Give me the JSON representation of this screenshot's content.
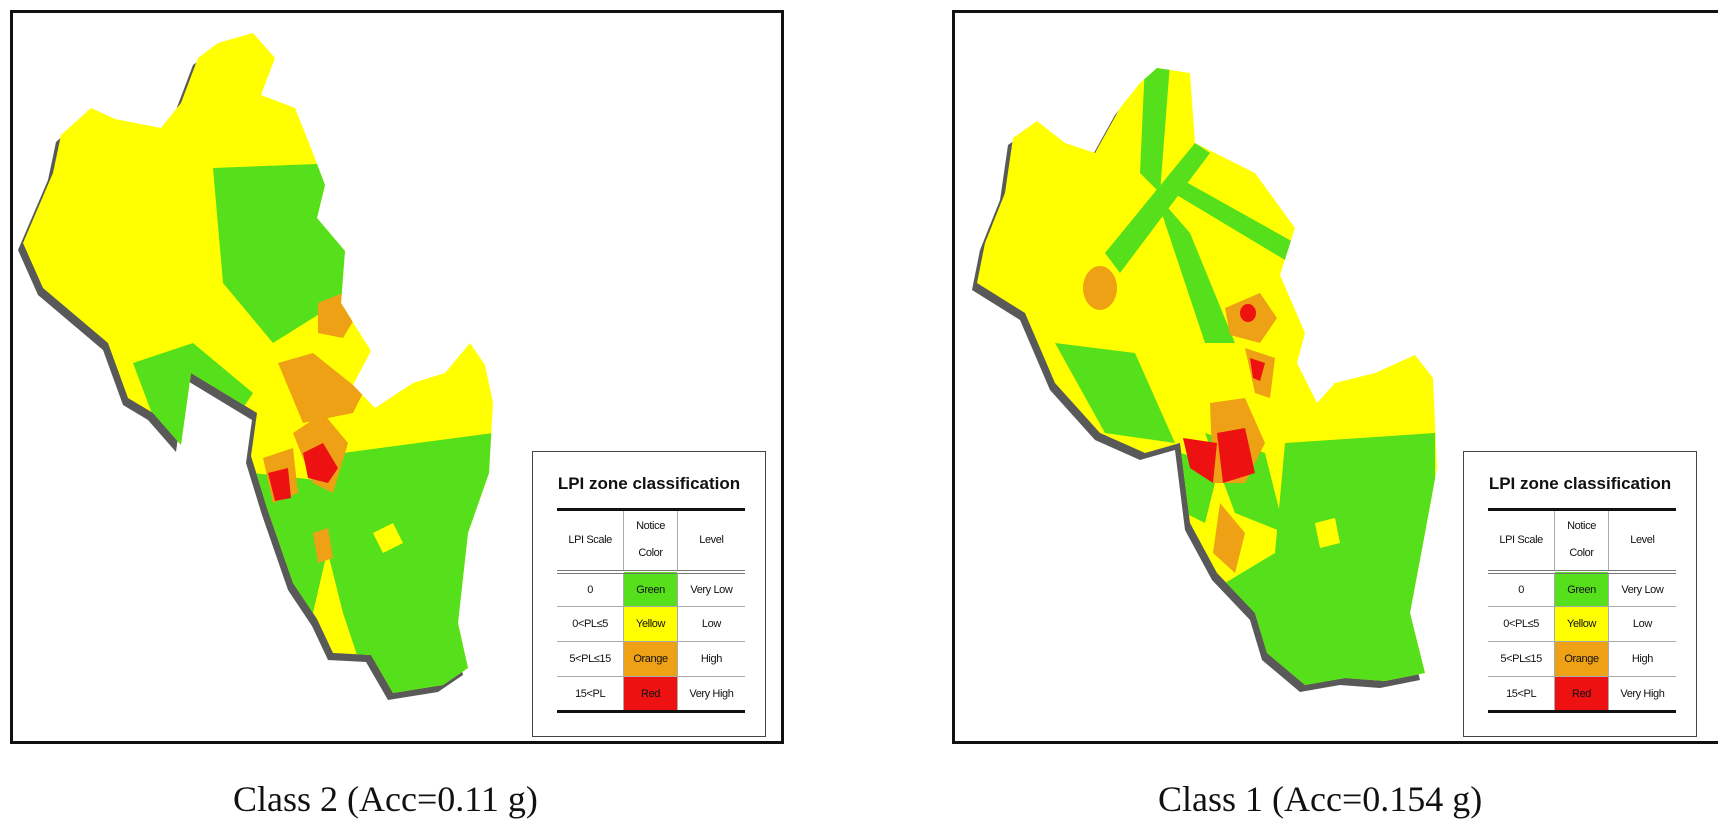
{
  "colors": {
    "green": "#55e01b",
    "yellow": "#ffff00",
    "orange": "#eea115",
    "red": "#ee1111"
  },
  "legend": {
    "title": "LPI zone classification",
    "headers": {
      "scale": "LPI Scale",
      "color_line1": "Notice",
      "color_line2": "Color",
      "level": "Level"
    },
    "rows": [
      {
        "scale": "0",
        "color": "Green",
        "level": "Very Low",
        "swatch": "#55e01b"
      },
      {
        "scale": "0<PL≤5",
        "color": "Yellow",
        "level": "Low",
        "swatch": "#ffff00"
      },
      {
        "scale": "5<PL≤15",
        "color": "Orange",
        "level": "High",
        "swatch": "#eea115"
      },
      {
        "scale": "15<PL",
        "color": "Red",
        "level": "Very High",
        "swatch": "#ee1111"
      }
    ]
  },
  "panels": [
    {
      "caption": "Class 2 (Acc=0.11 g)"
    },
    {
      "caption": "Class 1 (Acc=0.154 g)"
    }
  ]
}
